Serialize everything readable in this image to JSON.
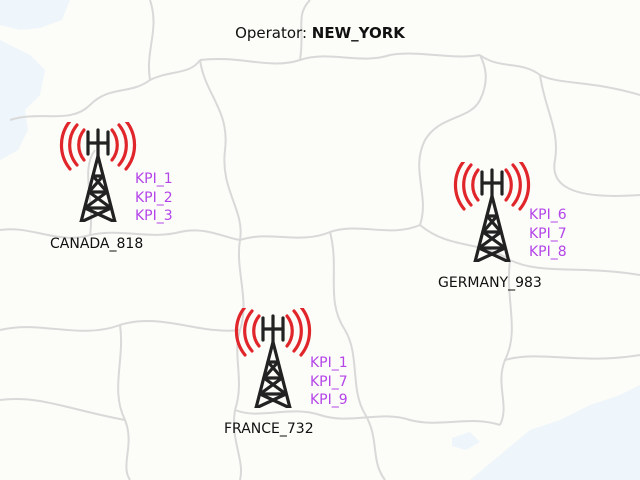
{
  "header": {
    "prefix": "Operator:",
    "operator": "NEW_YORK"
  },
  "colors": {
    "background": "#fcfcf8",
    "border": "#d9d9d9",
    "water": "#eef6fb",
    "tower": "#222222",
    "signal": "#e0262b",
    "kpi": "#b445e8"
  },
  "sites": [
    {
      "name": "CANADA_818",
      "kpis": [
        "KPI_1",
        "KPI_2",
        "KPI_3"
      ]
    },
    {
      "name": "GERMANY_983",
      "kpis": [
        "KPI_6",
        "KPI_7",
        "KPI_8"
      ]
    },
    {
      "name": "FRANCE_732",
      "kpis": [
        "KPI_1",
        "KPI_7",
        "KPI_9"
      ]
    }
  ]
}
